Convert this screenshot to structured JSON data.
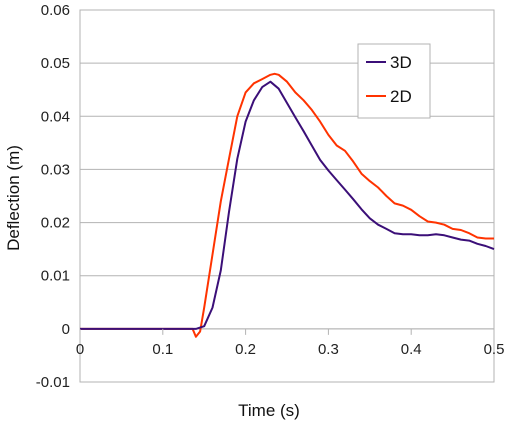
{
  "chart_data": {
    "type": "line",
    "title": "",
    "xlabel": "Time (s)",
    "ylabel": "Deflection (m)",
    "xlim": [
      0,
      0.5
    ],
    "ylim": [
      -0.01,
      0.06
    ],
    "x_ticks": [
      0,
      0.1,
      0.2,
      0.3,
      0.4,
      0.5
    ],
    "x_tick_labels": [
      "0",
      "0.1",
      "0.2",
      "0.3",
      "0.4",
      "0.5"
    ],
    "y_ticks": [
      -0.01,
      0,
      0.01,
      0.02,
      0.03,
      0.04,
      0.05,
      0.06
    ],
    "y_tick_labels": [
      "-0.01",
      "0",
      "0.01",
      "0.02",
      "0.03",
      "0.04",
      "0.05",
      "0.06"
    ],
    "grid": "horizontal",
    "legend_position": "top-right",
    "series": [
      {
        "name": "3D",
        "color": "#3b0f78",
        "x": [
          0,
          0.1,
          0.14,
          0.15,
          0.16,
          0.17,
          0.18,
          0.19,
          0.2,
          0.21,
          0.22,
          0.23,
          0.24,
          0.25,
          0.26,
          0.27,
          0.28,
          0.29,
          0.3,
          0.31,
          0.32,
          0.33,
          0.34,
          0.35,
          0.36,
          0.37,
          0.38,
          0.39,
          0.4,
          0.41,
          0.42,
          0.43,
          0.44,
          0.45,
          0.46,
          0.47,
          0.48,
          0.49,
          0.5
        ],
        "y": [
          0,
          0,
          0,
          0.0005,
          0.004,
          0.011,
          0.022,
          0.032,
          0.039,
          0.043,
          0.0455,
          0.0465,
          0.0452,
          0.0425,
          0.0398,
          0.0372,
          0.0345,
          0.0318,
          0.0298,
          0.028,
          0.0262,
          0.0244,
          0.0225,
          0.0208,
          0.0196,
          0.0188,
          0.018,
          0.0178,
          0.0178,
          0.0176,
          0.0176,
          0.0178,
          0.0176,
          0.0172,
          0.0168,
          0.0166,
          0.016,
          0.0156,
          0.015
        ]
      },
      {
        "name": "2D",
        "color": "#ff3300",
        "x": [
          0,
          0.1,
          0.136,
          0.14,
          0.145,
          0.15,
          0.16,
          0.17,
          0.18,
          0.19,
          0.2,
          0.21,
          0.22,
          0.23,
          0.235,
          0.24,
          0.25,
          0.26,
          0.27,
          0.28,
          0.29,
          0.3,
          0.31,
          0.32,
          0.33,
          0.34,
          0.35,
          0.36,
          0.37,
          0.38,
          0.39,
          0.4,
          0.41,
          0.42,
          0.43,
          0.44,
          0.45,
          0.46,
          0.47,
          0.48,
          0.49,
          0.5
        ],
        "y": [
          0,
          0,
          0,
          -0.0015,
          -0.0005,
          0.004,
          0.014,
          0.024,
          0.032,
          0.04,
          0.0445,
          0.0462,
          0.047,
          0.0478,
          0.048,
          0.0478,
          0.0465,
          0.0445,
          0.043,
          0.0412,
          0.039,
          0.0365,
          0.0345,
          0.0335,
          0.0315,
          0.0292,
          0.0278,
          0.0266,
          0.025,
          0.0236,
          0.0232,
          0.0224,
          0.0212,
          0.0202,
          0.02,
          0.0196,
          0.0188,
          0.0186,
          0.018,
          0.0172,
          0.017,
          0.017
        ]
      }
    ]
  }
}
